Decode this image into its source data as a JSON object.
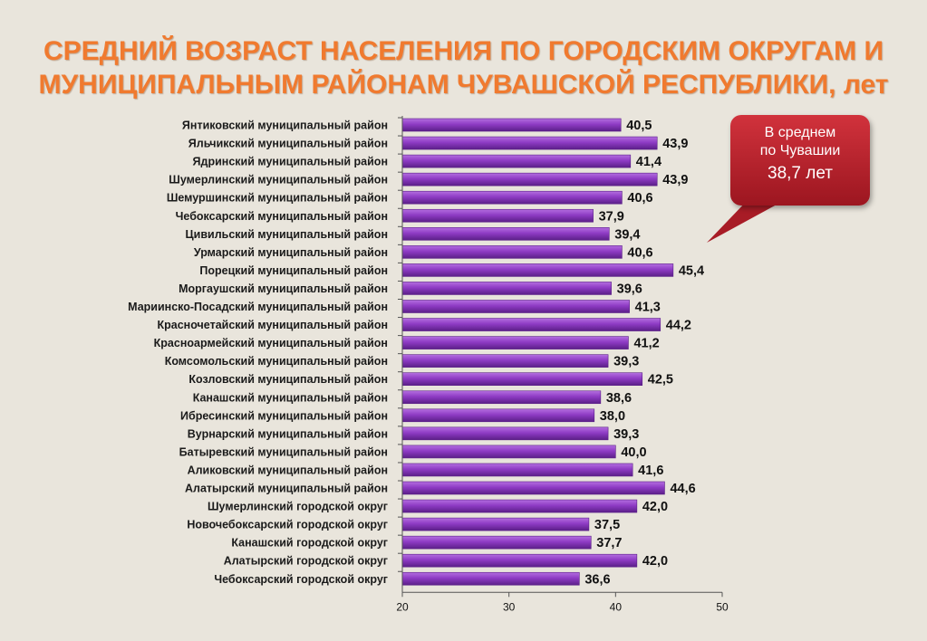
{
  "title_line1": "СРЕДНИЙ ВОЗРАСТ НАСЕЛЕНИЯ  ПО ГОРОДСКИМ ОКРУГАМ И",
  "title_line2": "МУНИЦИПАЛЬНЫМ РАЙОНАМ ЧУВАШСКОЙ РЕСПУБЛИКИ,  лет",
  "callout": {
    "line1": "В  среднем",
    "line2": "по Чувашии",
    "line3": "38,7 лет"
  },
  "colors": {
    "bar": "#8e3bc4",
    "bar_dark": "#5b1f88",
    "bar_light": "#b46ee0",
    "title": "#f07a2f",
    "callout": "#c0232e",
    "background": "#e9e5dc"
  },
  "chart_data": {
    "type": "bar",
    "orientation": "horizontal",
    "categories": [
      "Янтиковский муниципальный район",
      "Яльчикский муниципальный район",
      "Ядринский муниципальный район",
      "Шумерлинский муниципальный район",
      "Шемуршинский муниципальный район",
      "Чебоксарский муниципальный район",
      "Цивильский муниципальный район",
      "Урмарский муниципальный район",
      "Порецкий муниципальный район",
      "Моргаушский муниципальный район",
      "Мариинско-Посадский муниципальный район",
      "Красночетайский муниципальный район",
      "Красноармейский муниципальный район",
      "Комсомольский муниципальный район",
      "Козловский муниципальный район",
      "Канашский муниципальный район",
      "Ибресинский муниципальный район",
      "Вурнарский муниципальный район",
      "Батыревский муниципальный район",
      "Аликовский муниципальный район",
      "Алатырский муниципальный район",
      "Шумерлинский городской округ",
      "Новочебоксарский городской округ",
      "Канашский городской округ",
      "Алатырский городской округ",
      "Чебоксарский городской округ"
    ],
    "values": [
      40.5,
      43.9,
      41.4,
      43.9,
      40.6,
      37.9,
      39.4,
      40.6,
      45.4,
      39.6,
      41.3,
      44.2,
      41.2,
      39.3,
      42.5,
      38.6,
      38.0,
      39.3,
      40.0,
      41.6,
      44.6,
      42.0,
      37.5,
      37.7,
      42.0,
      36.6
    ],
    "value_labels": [
      "40,5",
      "43,9",
      "41,4",
      "43,9",
      "40,6",
      "37,9",
      "39,4",
      "40,6",
      "45,4",
      "39,6",
      "41,3",
      "44,2",
      "41,2",
      "39,3",
      "42,5",
      "38,6",
      "38,0",
      "39,3",
      "40,0",
      "41,6",
      "44,6",
      "42,0",
      "37,5",
      "37,7",
      "42,0",
      "36,6"
    ],
    "xlim": [
      20,
      50
    ],
    "xticks": [
      20,
      30,
      40,
      50
    ],
    "xtick_labels": [
      "20",
      "30",
      "40",
      "50"
    ],
    "grid": false,
    "legend": "none"
  }
}
